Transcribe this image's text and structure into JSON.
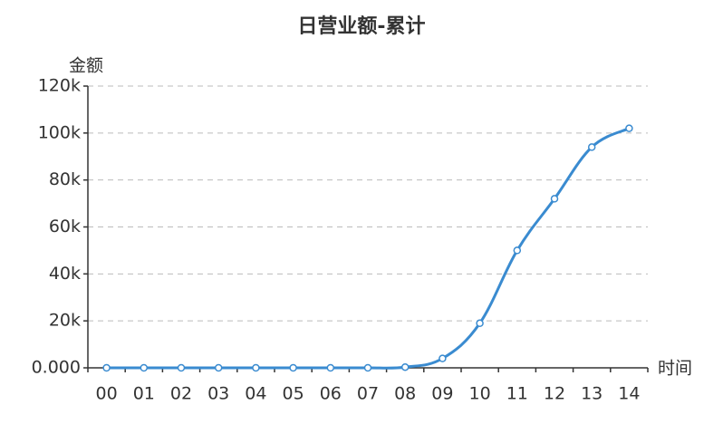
{
  "chart_data": {
    "type": "line",
    "title": "日营业额-累计",
    "y_label": "金额",
    "x_label": "时间",
    "categories": [
      "00",
      "01",
      "02",
      "03",
      "04",
      "05",
      "06",
      "07",
      "08",
      "09",
      "10",
      "11",
      "12",
      "13",
      "14"
    ],
    "series": [
      {
        "name": "日营业额-累计",
        "color": "#3a8bd0",
        "values": [
          0,
          0,
          0,
          0,
          0,
          0,
          0,
          0,
          300,
          4000,
          19000,
          50000,
          72000,
          94000,
          102000
        ]
      }
    ],
    "ylim": [
      0,
      120000
    ],
    "yticks": [
      {
        "value": 0,
        "label": "0.000"
      },
      {
        "value": 20000,
        "label": "20k"
      },
      {
        "value": 40000,
        "label": "40k"
      },
      {
        "value": 60000,
        "label": "60k"
      },
      {
        "value": 80000,
        "label": "80k"
      },
      {
        "value": 100000,
        "label": "100k"
      },
      {
        "value": 120000,
        "label": "120k"
      }
    ],
    "grid": true
  }
}
